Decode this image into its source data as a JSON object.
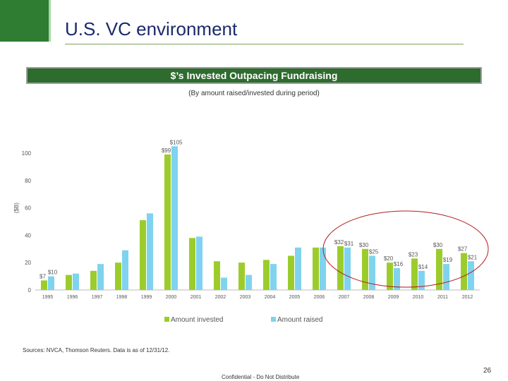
{
  "slide": {
    "title": "U.S. VC environment",
    "banner": "$’s Invested Outpacing Fundraising",
    "subtitle": "(By amount raised/invested during period)",
    "source": "Sources: NVCA, Thomson Reuters. Data is as of 12/31/12.",
    "confidential": "Confidential - Do Not Distribute",
    "page_number": "26"
  },
  "colors": {
    "brand_green": "#2e7d32",
    "banner_green": "#2e6b2e",
    "invested": "#9ccc2c",
    "raised": "#7fd3ef",
    "highlight_ellipse": "#b71c1c"
  },
  "chart_data": {
    "type": "bar",
    "title": "$’s Invested Outpacing Fundraising",
    "xlabel": "",
    "ylabel": "($B)",
    "ylim": [
      0,
      100
    ],
    "yticks": [
      0,
      20,
      40,
      60,
      80,
      100
    ],
    "grid": false,
    "legend": "bottom-center",
    "categories": [
      "1995",
      "1996",
      "1997",
      "1998",
      "1999",
      "2000",
      "2001",
      "2002",
      "2003",
      "2004",
      "2005",
      "2006",
      "2007",
      "2008",
      "2009",
      "2010",
      "2011",
      "2012"
    ],
    "series": [
      {
        "name": "Amount invested",
        "color": "#9ccc2c",
        "values": [
          7,
          11,
          14,
          20,
          51,
          99,
          38,
          21,
          20,
          22,
          25,
          31,
          32,
          30,
          20,
          23,
          30,
          27
        ],
        "labels": [
          "$7",
          "",
          "",
          "",
          "",
          "$99",
          "",
          "",
          "",
          "",
          "",
          "",
          "$32",
          "$30",
          "$20",
          "$23",
          "$30",
          "$27"
        ]
      },
      {
        "name": "Amount raised",
        "color": "#7fd3ef",
        "values": [
          10,
          12,
          19,
          29,
          56,
          105,
          39,
          9,
          11,
          19,
          31,
          31,
          31,
          25,
          16,
          14,
          19,
          21
        ],
        "labels": [
          "$10",
          "",
          "",
          "",
          "",
          "$105",
          "",
          "",
          "",
          "",
          "",
          "",
          "$31",
          "$25",
          "$16",
          "$14",
          "$19",
          "$21"
        ]
      }
    ],
    "annotations": [
      "highlight-ellipse-2007-2012"
    ]
  }
}
